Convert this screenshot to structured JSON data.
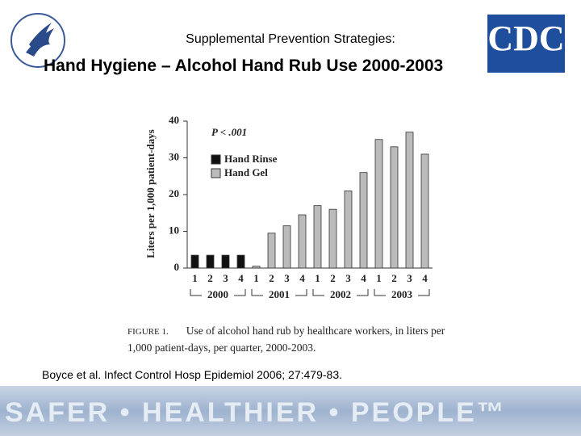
{
  "slide": {
    "subtitle": "Supplemental Prevention Strategies:",
    "title": "Hand Hygiene – Alcohol Hand Rub Use 2000-2003",
    "logo_text": "CDC",
    "caption_label": "FIGURE 1.",
    "caption": "Use of alcohol hand rub by healthcare workers, in liters per 1,000 patient-days, per quarter, 2000-2003.",
    "citation": "Boyce et al. Infect Control Hosp Epidemiol 2006; 27:479-83.",
    "footer": "SAFER • HEALTHIER • PEOPLE™"
  },
  "chart_data": {
    "type": "bar",
    "y_label": "Liters per 1,000 patient-days",
    "annotation": "P < .001",
    "categories": [
      "1",
      "2",
      "3",
      "4",
      "1",
      "2",
      "3",
      "4",
      "1",
      "2",
      "3",
      "4",
      "1",
      "2",
      "3",
      "4"
    ],
    "groups": [
      "2000",
      "2001",
      "2002",
      "2003"
    ],
    "series": [
      {
        "name": "Hand Rinse",
        "color": "#111111",
        "values": [
          3.5,
          3.5,
          3.5,
          3.5,
          null,
          null,
          null,
          null,
          null,
          null,
          null,
          null,
          null,
          null,
          null,
          null
        ]
      },
      {
        "name": "Hand Gel",
        "color": "#bbbbbb",
        "values": [
          null,
          null,
          null,
          null,
          0.5,
          9.5,
          11.5,
          14.5,
          17,
          16,
          21,
          26,
          35,
          33,
          37,
          31
        ]
      }
    ],
    "ylim": [
      0,
      40
    ],
    "yticks": [
      0,
      10,
      20,
      30,
      40
    ]
  }
}
